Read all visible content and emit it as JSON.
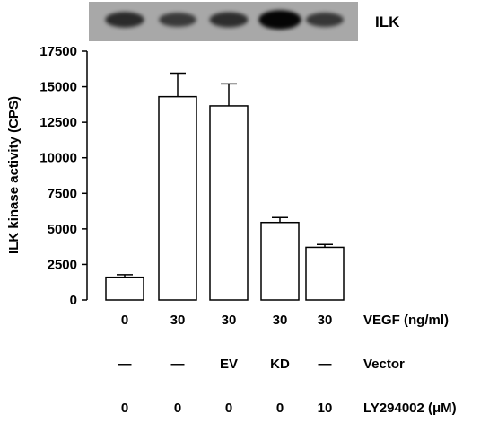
{
  "blot": {
    "label": "ILK",
    "band_intensity": [
      0.62,
      0.48,
      0.58,
      0.95,
      0.5
    ]
  },
  "chart_data": {
    "type": "bar",
    "ylabel": "ILK kinase activity (CPS)",
    "ylim": [
      0,
      17500
    ],
    "yticks": [
      0,
      2500,
      5000,
      7500,
      10000,
      12500,
      15000,
      17500
    ],
    "bar_fill": "#ffffff",
    "bar_stroke": "#000000",
    "values": [
      1600,
      14300,
      13650,
      5450,
      3700
    ],
    "errors": [
      180,
      1650,
      1550,
      350,
      200
    ],
    "categories": [
      {
        "vegf": "0",
        "vector": "—",
        "ly": "0"
      },
      {
        "vegf": "30",
        "vector": "—",
        "ly": "0"
      },
      {
        "vegf": "30",
        "vector": "EV",
        "ly": "0"
      },
      {
        "vegf": "30",
        "vector": "KD",
        "ly": "0"
      },
      {
        "vegf": "30",
        "vector": "—",
        "ly": "10"
      }
    ],
    "row_labels": {
      "vegf": "VEGF (ng/ml)",
      "vector": "Vector",
      "ly": "LY294002 (μM)"
    }
  }
}
